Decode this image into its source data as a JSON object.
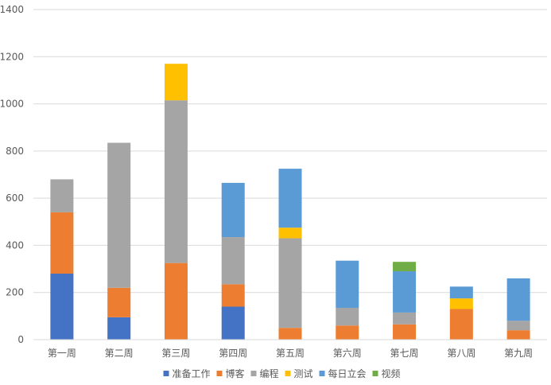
{
  "chart_data": {
    "type": "bar",
    "stacked": true,
    "categories": [
      "第一周",
      "第二周",
      "第三周",
      "第四周",
      "第五周",
      "第六周",
      "第七周",
      "第八周",
      "第九周"
    ],
    "ylim": [
      0,
      1400
    ],
    "yticks": [
      0,
      200,
      400,
      600,
      800,
      1000,
      1200,
      1400
    ],
    "grid": true,
    "legend_position": "bottom",
    "series": [
      {
        "name": "准备工作",
        "color": "#4472C4",
        "values": [
          280,
          95,
          0,
          140,
          0,
          0,
          0,
          0,
          0
        ]
      },
      {
        "name": "博客",
        "color": "#ED7D31",
        "values": [
          260,
          125,
          325,
          95,
          50,
          60,
          65,
          130,
          40
        ]
      },
      {
        "name": "编程",
        "color": "#A5A5A5",
        "values": [
          140,
          615,
          690,
          200,
          380,
          75,
          50,
          0,
          40
        ]
      },
      {
        "name": "测试",
        "color": "#FFC000",
        "values": [
          0,
          0,
          155,
          0,
          45,
          0,
          0,
          45,
          0
        ]
      },
      {
        "name": "每日立会",
        "color": "#5B9BD5",
        "values": [
          0,
          0,
          0,
          230,
          250,
          200,
          175,
          50,
          180
        ]
      },
      {
        "name": "视频",
        "color": "#70AD47",
        "values": [
          0,
          0,
          0,
          0,
          0,
          0,
          40,
          0,
          0
        ]
      }
    ]
  }
}
